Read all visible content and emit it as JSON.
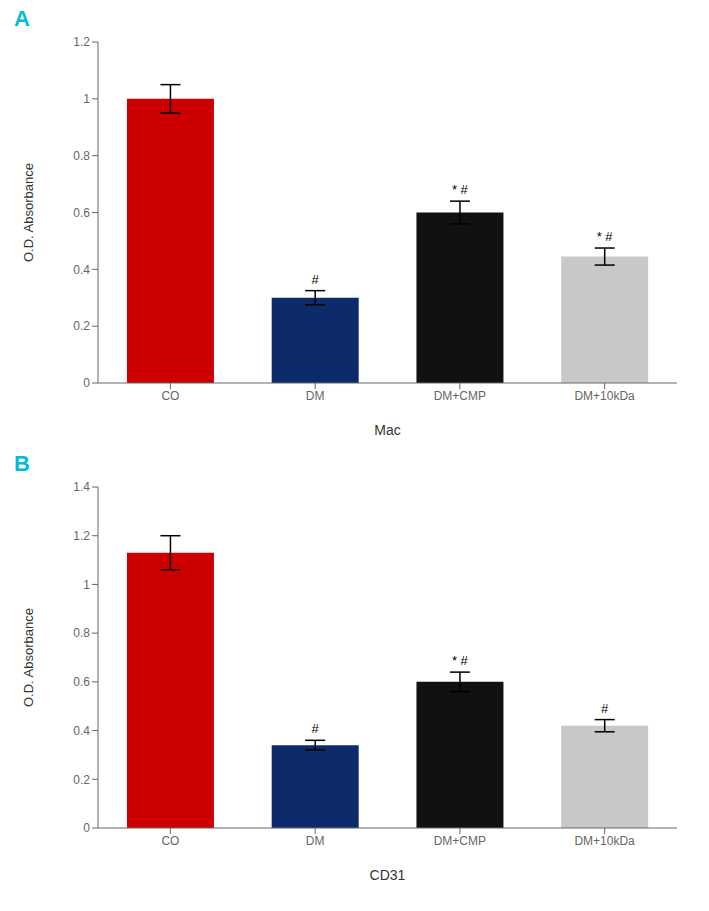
{
  "chart_data": [
    {
      "type": "bar",
      "panel_label": "A",
      "xlabel": "Mac",
      "ylabel": "O.D. Absorbance",
      "categories": [
        "CO",
        "DM",
        "DM+CMP",
        "DM+10kDa"
      ],
      "values": [
        1.0,
        0.3,
        0.6,
        0.445
      ],
      "errors": [
        0.05,
        0.025,
        0.04,
        0.03
      ],
      "colors": [
        "#cc0000",
        "#0d2b6b",
        "#111111",
        "#c8c8c8"
      ],
      "ylim": [
        0,
        1.2
      ],
      "yticks": [
        0,
        0.2,
        0.4,
        0.6,
        0.8,
        1,
        1.2
      ],
      "grid": false,
      "annotations": [
        {
          "category": "DM",
          "text": "#"
        },
        {
          "category": "DM+CMP",
          "text": "*  #"
        },
        {
          "category": "DM+10kDa",
          "text": "*  #"
        }
      ]
    },
    {
      "type": "bar",
      "panel_label": "B",
      "xlabel": "CD31",
      "ylabel": "O.D. Absorbance",
      "categories": [
        "CO",
        "DM",
        "DM+CMP",
        "DM+10kDa"
      ],
      "values": [
        1.13,
        0.34,
        0.6,
        0.42
      ],
      "errors": [
        0.07,
        0.02,
        0.04,
        0.025
      ],
      "colors": [
        "#cc0000",
        "#0d2b6b",
        "#111111",
        "#c8c8c8"
      ],
      "ylim": [
        0,
        1.4
      ],
      "yticks": [
        0,
        0.2,
        0.4,
        0.6,
        0.8,
        1,
        1.2,
        1.4
      ],
      "grid": false,
      "annotations": [
        {
          "category": "DM",
          "text": "#"
        },
        {
          "category": "DM+CMP",
          "text": "*  #"
        },
        {
          "category": "DM+10kDa",
          "text": "#"
        }
      ]
    }
  ]
}
